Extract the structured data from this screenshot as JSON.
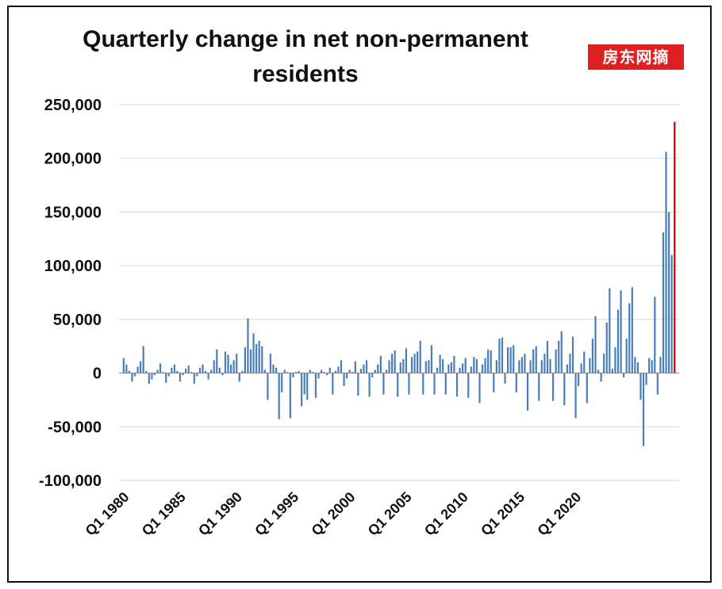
{
  "chart_data": {
    "type": "bar",
    "title": "Quarterly change in net non-permanent residents",
    "xlabel": "",
    "ylabel": "",
    "ylim": [
      -100000,
      250000
    ],
    "y_ticks": [
      "250,000",
      "200,000",
      "150,000",
      "100,000",
      "50,000",
      "0",
      "-50,000",
      "-100,000"
    ],
    "y_tick_values": [
      250000,
      200000,
      150000,
      100000,
      50000,
      0,
      -50000,
      -100000
    ],
    "x_tick_labels": [
      "Q1 1980",
      "Q1 1985",
      "Q1 1990",
      "Q1 1995",
      "Q1 2000",
      "Q1 2005",
      "Q1 2010",
      "Q1 2015",
      "Q1 2020"
    ],
    "x_tick_years": [
      1980,
      1985,
      1990,
      1995,
      2000,
      2005,
      2010,
      2015,
      2020
    ],
    "grid": true,
    "legend": "none",
    "start_year": 1980,
    "bar_color": "#4a7ebb",
    "highlight_color": "#e00000",
    "series": [
      {
        "values": [
          14000,
          8000,
          2000,
          -8000,
          -3000,
          6000,
          11000,
          25000,
          2000,
          -10000,
          -6000,
          -2000,
          3000,
          9000,
          1000,
          -9000,
          -3000,
          5000,
          8000,
          2000,
          -8000,
          -2000,
          4000,
          7000,
          1000,
          -10000,
          -3000,
          5000,
          8000,
          2000,
          -6000,
          3000,
          12000,
          22000,
          5000,
          -2000,
          20000,
          17000,
          8000,
          12000,
          18000,
          -8000,
          2000,
          24000,
          51000,
          22000,
          37000,
          27000,
          30000,
          25000,
          3000,
          -25000,
          18000,
          8000,
          5000,
          -43000,
          -18000,
          3000,
          1000,
          -42000,
          -4000,
          1000,
          2000,
          -31000,
          -20000,
          -25000,
          3000,
          1000,
          -23000,
          -5000,
          3000,
          1000,
          -2000,
          5000,
          -20000,
          2000,
          6000,
          12000,
          -12000,
          -5000,
          3000,
          1000,
          11000,
          -21000,
          4000,
          8000,
          12000,
          -22000,
          -4000,
          3000,
          8000,
          16000,
          -20000,
          3000,
          12000,
          18000,
          21000,
          -22000,
          10000,
          13000,
          23000,
          -20000,
          15000,
          18000,
          20000,
          30000,
          -20000,
          11000,
          12000,
          26000,
          -20000,
          5000,
          17000,
          13000,
          -20000,
          8000,
          10000,
          16000,
          -22000,
          5000,
          9000,
          14000,
          -23000,
          6000,
          15000,
          13000,
          -28000,
          8000,
          14000,
          22000,
          21000,
          -18000,
          12000,
          32000,
          33000,
          -10000,
          24000,
          24000,
          26000,
          -18000,
          12000,
          15000,
          18000,
          -35000,
          12000,
          22000,
          25000,
          -26000,
          12000,
          18000,
          30000,
          13000,
          -26000,
          22000,
          30000,
          39000,
          -30000,
          8000,
          18000,
          34000,
          -42000,
          -12000,
          9000,
          20000,
          -28000,
          14000,
          32000,
          53000,
          3000,
          -8000,
          18000,
          47000,
          79000,
          4000,
          24000,
          59000,
          77000,
          -4000,
          32000,
          65000,
          80000,
          15000,
          10000,
          -25000,
          -68000,
          -11000,
          14000,
          12000,
          71000,
          -20000,
          15000,
          131000,
          206000,
          150000,
          110000,
          234000
        ],
        "highlight_last": true
      }
    ]
  },
  "watermark": "房东网摘"
}
